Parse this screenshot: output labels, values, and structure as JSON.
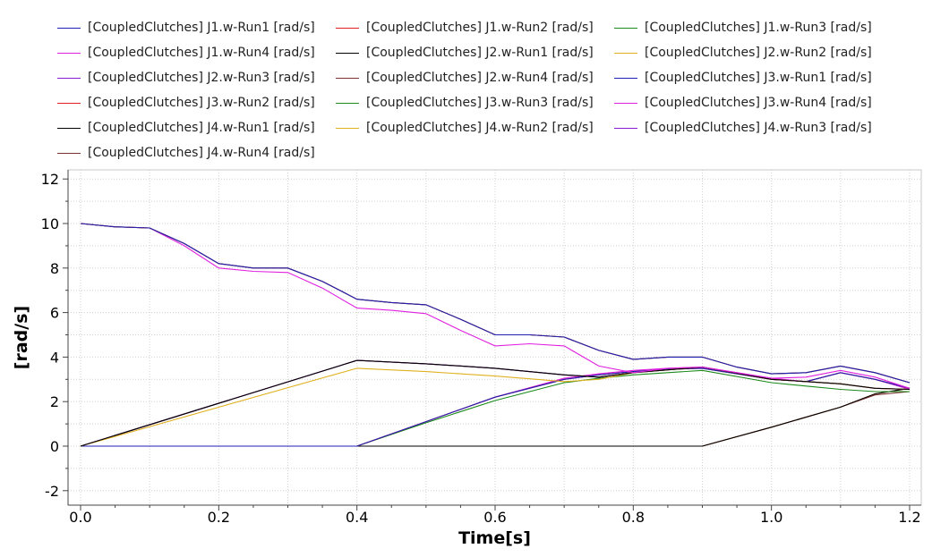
{
  "chart_data": {
    "type": "line",
    "title": "",
    "xlabel": "Time[s]",
    "ylabel": "[rad/s]",
    "xlim": [
      -0.02,
      1.21
    ],
    "ylim": [
      -2.3,
      12.3
    ],
    "xticks": [
      0.0,
      0.2,
      0.4,
      0.6,
      0.8,
      1.0,
      1.2
    ],
    "xtick_labels": [
      "0.0",
      "0.2",
      "0.4",
      "0.6",
      "0.8",
      "1.0",
      "1.2"
    ],
    "yticks": [
      -2,
      0,
      2,
      4,
      6,
      8,
      10,
      12
    ],
    "ytick_labels": [
      "-2",
      "0",
      "2",
      "4",
      "6",
      "8",
      "10",
      "12"
    ],
    "grid": true,
    "legend_position": "top",
    "series": [
      {
        "name": "[CoupledClutches] J1.w-Run1 [rad/s]",
        "color": "#1f1fb4",
        "x": [
          0,
          0.05,
          0.1,
          0.15,
          0.2,
          0.25,
          0.3,
          0.35,
          0.4,
          0.45,
          0.5,
          0.55,
          0.6,
          0.65,
          0.7,
          0.75,
          0.8,
          0.85,
          0.9,
          0.95,
          1.0,
          1.05,
          1.1,
          1.15,
          1.2
        ],
        "y": [
          10.0,
          9.85,
          9.8,
          9.1,
          8.2,
          8.0,
          8.0,
          7.4,
          6.6,
          6.45,
          6.35,
          5.7,
          5.0,
          5.0,
          4.9,
          4.3,
          3.9,
          4.0,
          4.0,
          3.55,
          3.25,
          3.3,
          3.6,
          3.3,
          2.85
        ]
      },
      {
        "name": "[CoupledClutches] J1.w-Run2 [rad/s]",
        "color": "#e02020",
        "x": [
          0,
          0.05,
          0.1,
          0.15,
          0.2,
          0.25,
          0.3,
          0.35,
          0.4,
          0.45,
          0.5,
          0.55,
          0.6,
          0.65,
          0.7,
          0.75,
          0.8,
          0.85,
          0.9,
          0.95,
          1.0,
          1.05,
          1.1,
          1.15,
          1.2
        ],
        "y": [
          10.0,
          9.85,
          9.8,
          9.1,
          8.2,
          8.0,
          8.0,
          7.4,
          6.6,
          6.45,
          6.35,
          5.7,
          5.0,
          5.0,
          4.9,
          4.3,
          3.9,
          4.0,
          4.0,
          3.55,
          3.25,
          3.3,
          3.6,
          3.3,
          2.85
        ]
      },
      {
        "name": "[CoupledClutches] J1.w-Run3 [rad/s]",
        "color": "#1a8a1a",
        "x": [
          0,
          0.05,
          0.1,
          0.15,
          0.2,
          0.25,
          0.3,
          0.35,
          0.4,
          0.45,
          0.5,
          0.55,
          0.6,
          0.65,
          0.7,
          0.75,
          0.8,
          0.85,
          0.9,
          0.95,
          1.0,
          1.05,
          1.1,
          1.15,
          1.2
        ],
        "y": [
          10.0,
          9.85,
          9.8,
          9.1,
          8.2,
          8.0,
          8.0,
          7.4,
          6.6,
          6.45,
          6.35,
          5.7,
          5.0,
          5.0,
          4.9,
          4.3,
          3.9,
          4.0,
          4.0,
          3.55,
          3.25,
          3.3,
          3.6,
          3.3,
          2.85
        ]
      },
      {
        "name": "[CoupledClutches] J1.w-Run4 [rad/s]",
        "color": "#e020e0",
        "x": [
          0,
          0.05,
          0.1,
          0.15,
          0.2,
          0.25,
          0.3,
          0.35,
          0.4,
          0.45,
          0.5,
          0.55,
          0.6,
          0.65,
          0.7,
          0.75,
          0.8,
          0.85,
          0.9,
          0.95,
          1.0,
          1.05,
          1.1,
          1.15,
          1.2
        ],
        "y": [
          10.0,
          9.85,
          9.8,
          9.0,
          8.0,
          7.85,
          7.8,
          7.1,
          6.2,
          6.1,
          5.95,
          5.2,
          4.5,
          4.6,
          4.5,
          3.6,
          3.3,
          3.5,
          3.55,
          3.3,
          3.05,
          3.1,
          3.4,
          3.1,
          2.6
        ]
      },
      {
        "name": "[CoupledClutches] J2.w-Run1 [rad/s]",
        "color": "#000000",
        "x": [
          0,
          0.4,
          0.5,
          0.6,
          0.7,
          0.75,
          0.8,
          0.9,
          1.0,
          1.1,
          1.15,
          1.2
        ],
        "y": [
          0,
          3.85,
          3.7,
          3.5,
          3.2,
          3.1,
          3.3,
          3.55,
          3.0,
          2.8,
          2.6,
          2.55
        ]
      },
      {
        "name": "[CoupledClutches] J2.w-Run2 [rad/s]",
        "color": "#e0b020",
        "x": [
          0,
          0.4,
          0.5,
          0.6,
          0.7,
          0.75,
          0.8,
          0.9,
          1.0,
          1.1,
          1.15,
          1.2
        ],
        "y": [
          0,
          3.5,
          3.35,
          3.15,
          2.9,
          3.0,
          3.3,
          3.55,
          3.0,
          2.8,
          2.6,
          2.55
        ]
      },
      {
        "name": "[CoupledClutches] J2.w-Run3 [rad/s]",
        "color": "#8a1ad0",
        "x": [
          0,
          0.4,
          0.5,
          0.6,
          0.7,
          0.75,
          0.8,
          0.9,
          1.0,
          1.1,
          1.15,
          1.2
        ],
        "y": [
          0,
          3.85,
          3.7,
          3.5,
          3.2,
          3.1,
          3.3,
          3.55,
          3.0,
          2.8,
          2.6,
          2.55
        ]
      },
      {
        "name": "[CoupledClutches] J2.w-Run4 [rad/s]",
        "color": "#7a3030",
        "x": [
          0,
          0.4,
          0.5,
          0.6,
          0.7,
          0.75,
          0.8,
          0.9,
          1.0,
          1.1,
          1.15,
          1.2
        ],
        "y": [
          0,
          3.85,
          3.7,
          3.5,
          3.2,
          3.1,
          3.3,
          3.55,
          3.0,
          2.8,
          2.6,
          2.55
        ]
      },
      {
        "name": "[CoupledClutches] J3.w-Run1 [rad/s]",
        "color": "#1f1fb4",
        "x": [
          0,
          0.4,
          0.5,
          0.6,
          0.7,
          0.75,
          0.8,
          0.85,
          0.9,
          1.0,
          1.05,
          1.1,
          1.15,
          1.2
        ],
        "y": [
          0,
          0,
          1.1,
          2.2,
          3.0,
          3.2,
          3.35,
          3.45,
          3.5,
          3.0,
          2.9,
          3.3,
          3.0,
          2.6
        ]
      },
      {
        "name": "[CoupledClutches] J3.w-Run2 [rad/s]",
        "color": "#e02020",
        "x": [
          0,
          0.4,
          0.5,
          0.6,
          0.7,
          0.75,
          0.8,
          0.85,
          0.9,
          1.0,
          1.05,
          1.1,
          1.15,
          1.2
        ],
        "y": [
          0,
          0,
          1.1,
          2.2,
          3.0,
          3.2,
          3.35,
          3.45,
          3.5,
          3.0,
          2.9,
          3.3,
          3.0,
          2.6
        ]
      },
      {
        "name": "[CoupledClutches] J3.w-Run3 [rad/s]",
        "color": "#1a8a1a",
        "x": [
          0,
          0.4,
          0.5,
          0.6,
          0.7,
          0.75,
          0.8,
          0.85,
          0.9,
          1.0,
          1.05,
          1.1,
          1.15,
          1.2
        ],
        "y": [
          0,
          0,
          1.05,
          2.05,
          2.85,
          3.05,
          3.2,
          3.3,
          3.4,
          2.85,
          2.7,
          2.55,
          2.45,
          2.45
        ]
      },
      {
        "name": "[CoupledClutches] J3.w-Run4 [rad/s]",
        "color": "#e020e0",
        "x": [
          0,
          0.4,
          0.5,
          0.6,
          0.7,
          0.75,
          0.8,
          0.85,
          0.9,
          1.0,
          1.05,
          1.1,
          1.15,
          1.2
        ],
        "y": [
          0,
          0,
          1.1,
          2.2,
          3.05,
          3.25,
          3.4,
          3.5,
          3.55,
          3.05,
          2.9,
          3.3,
          3.0,
          2.55
        ]
      },
      {
        "name": "[CoupledClutches] J4.w-Run1 [rad/s]",
        "color": "#000000",
        "x": [
          0,
          0.9,
          1.0,
          1.1,
          1.15,
          1.2
        ],
        "y": [
          0,
          0,
          0.85,
          1.75,
          2.35,
          2.6
        ]
      },
      {
        "name": "[CoupledClutches] J4.w-Run2 [rad/s]",
        "color": "#e0b020",
        "x": [
          0,
          0.9,
          1.0,
          1.1,
          1.15,
          1.2
        ],
        "y": [
          0,
          0,
          0.85,
          1.75,
          2.35,
          2.6
        ]
      },
      {
        "name": "[CoupledClutches] J4.w-Run3 [rad/s]",
        "color": "#8a1ad0",
        "x": [
          0,
          0.9,
          1.0,
          1.1,
          1.15,
          1.2
        ],
        "y": [
          0,
          0,
          0.85,
          1.75,
          2.35,
          2.6
        ]
      },
      {
        "name": "[CoupledClutches] J4.w-Run4 [rad/s]",
        "color": "#7a3030",
        "x": [
          0,
          0.9,
          1.0,
          1.1,
          1.15,
          1.2
        ],
        "y": [
          0,
          0,
          0.85,
          1.75,
          2.3,
          2.45
        ]
      }
    ]
  }
}
